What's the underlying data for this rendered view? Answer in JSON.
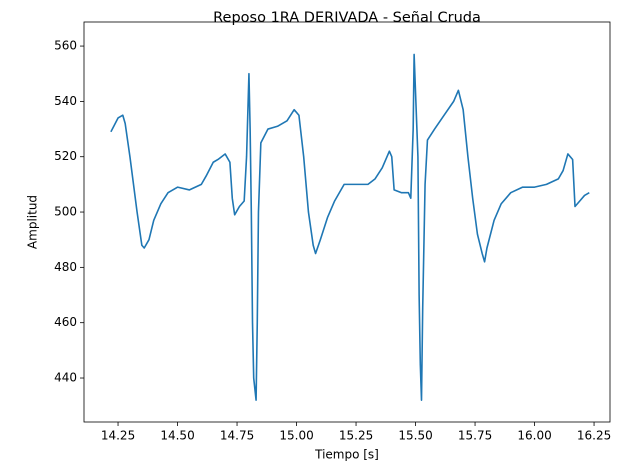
{
  "chart_data": {
    "type": "line",
    "title": "Reposo 1RA DERIVADA - Señal Cruda",
    "x_label": "Tiempo [s]",
    "y_label": "Amplitud",
    "color": "#1f77b4",
    "xlim": [
      14.107,
      16.317
    ],
    "ylim": [
      424.1,
      568.7
    ],
    "xticks": [
      14.25,
      {
        "value": 14.5,
        "label": "14.50"
      },
      14.75,
      {
        "value": 15,
        "label": "15.00"
      },
      15.25,
      {
        "value": 15.5,
        "label": "15.50"
      },
      15.75,
      {
        "value": 16,
        "label": "16.00"
      },
      16.25
    ],
    "yticks": [
      440,
      460,
      480,
      500,
      520,
      540,
      560
    ],
    "x": [
      14.22,
      14.25,
      14.27,
      14.28,
      14.3,
      14.33,
      14.35,
      14.36,
      14.38,
      14.4,
      14.43,
      14.46,
      14.5,
      14.55,
      14.6,
      14.62,
      14.65,
      14.67,
      14.7,
      14.72,
      14.73,
      14.74,
      14.76,
      14.78,
      14.79,
      14.8,
      14.805,
      14.81,
      14.815,
      14.82,
      14.83,
      14.835,
      14.84,
      14.85,
      14.88,
      14.92,
      14.96,
      14.99,
      15.01,
      15.03,
      15.05,
      15.07,
      15.08,
      15.1,
      15.13,
      15.16,
      15.2,
      15.25,
      15.3,
      15.33,
      15.36,
      15.39,
      15.4,
      15.41,
      15.44,
      15.47,
      15.48,
      15.49,
      15.494,
      15.51,
      15.515,
      15.52,
      15.525,
      15.53,
      15.54,
      15.55,
      15.58,
      15.62,
      15.66,
      15.68,
      15.7,
      15.72,
      15.74,
      15.76,
      15.78,
      15.79,
      15.8,
      15.83,
      15.86,
      15.9,
      15.95,
      16.0,
      16.05,
      16.1,
      16.12,
      16.14,
      16.16,
      16.17,
      16.19,
      16.21,
      16.23
    ],
    "values": [
      529,
      534,
      535,
      532,
      520,
      500,
      488,
      487,
      490,
      497,
      503,
      507,
      509,
      508,
      510,
      513,
      518,
      519,
      521,
      518,
      505,
      499,
      502,
      504,
      520,
      550,
      530,
      500,
      460,
      440,
      432,
      460,
      500,
      525,
      530,
      531,
      533,
      537,
      535,
      520,
      500,
      488,
      485,
      490,
      498,
      504,
      510,
      510,
      510,
      512,
      516,
      522,
      520,
      508,
      507,
      507,
      505,
      530,
      557,
      520,
      470,
      445,
      432,
      465,
      510,
      526,
      530,
      535,
      540,
      544,
      537,
      520,
      505,
      492,
      485,
      482,
      487,
      497,
      503,
      507,
      509,
      509,
      510,
      512,
      515,
      521,
      519,
      502,
      504,
      506,
      507
    ]
  }
}
